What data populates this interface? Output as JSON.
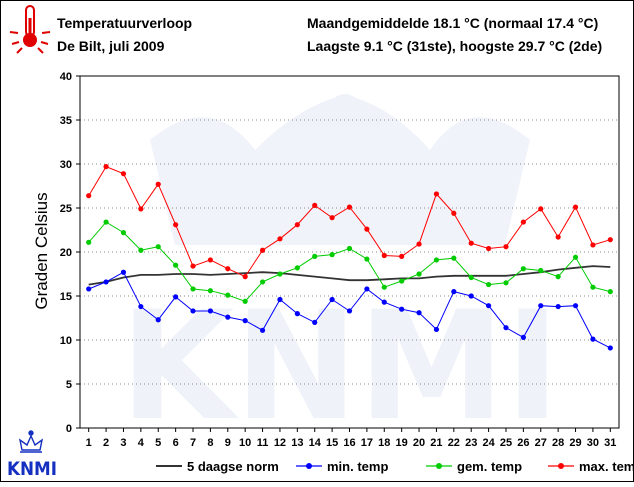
{
  "header": {
    "title_left": "Temperatuurverloop",
    "subtitle_left": "De Bilt, juli 2009",
    "title_right": "Maandgemiddelde 18.1 °C (normaal 17.4 °C)",
    "subtitle_right": "Laagste 9.1 °C (31ste), hoogste 29.7 °C (2de)"
  },
  "logo": {
    "text": "KNMI",
    "watermark": "KNMI"
  },
  "icons": {
    "thermometer": "thermometer-icon",
    "crown": "crown-icon"
  },
  "chart_data": {
    "type": "line",
    "title": "",
    "xlabel": "",
    "ylabel": "Graden Celsius",
    "ylim": [
      0,
      40
    ],
    "yticks": [
      0,
      5,
      10,
      15,
      20,
      25,
      30,
      35,
      40
    ],
    "x": [
      1,
      2,
      3,
      4,
      5,
      6,
      7,
      8,
      9,
      10,
      11,
      12,
      13,
      14,
      15,
      16,
      17,
      18,
      19,
      20,
      21,
      22,
      23,
      24,
      25,
      26,
      27,
      28,
      29,
      30,
      31
    ],
    "grid": "horizontal-dotted",
    "legend": "bottom",
    "series": [
      {
        "name": "5 daagse norm",
        "color": "#333333",
        "marker": false,
        "values": [
          16.3,
          16.6,
          17.1,
          17.4,
          17.4,
          17.5,
          17.5,
          17.4,
          17.5,
          17.6,
          17.7,
          17.6,
          17.4,
          17.2,
          17.0,
          16.8,
          16.8,
          16.9,
          17.0,
          17.0,
          17.2,
          17.3,
          17.3,
          17.3,
          17.3,
          17.5,
          17.7,
          18.0,
          18.2,
          18.4,
          18.3
        ]
      },
      {
        "name": "min. temp",
        "color": "#0000ff",
        "marker": true,
        "values": [
          15.8,
          16.6,
          17.7,
          13.8,
          12.3,
          14.9,
          13.3,
          13.3,
          12.6,
          12.2,
          11.1,
          14.6,
          13.0,
          12.0,
          14.6,
          13.3,
          15.8,
          14.3,
          13.5,
          13.1,
          11.2,
          15.5,
          15.0,
          13.9,
          11.4,
          10.3,
          13.9,
          13.8,
          13.9,
          10.1,
          9.1
        ]
      },
      {
        "name": "gem. temp",
        "color": "#00cc00",
        "marker": true,
        "values": [
          21.1,
          23.4,
          22.2,
          20.2,
          20.6,
          18.5,
          15.8,
          15.6,
          15.1,
          14.4,
          16.6,
          17.5,
          18.2,
          19.5,
          19.7,
          20.4,
          19.2,
          16.0,
          16.7,
          17.5,
          19.1,
          19.3,
          17.1,
          16.3,
          16.5,
          18.1,
          17.9,
          17.2,
          19.4,
          16.0,
          15.5
        ]
      },
      {
        "name": "max. temp",
        "color": "#ff0000",
        "marker": true,
        "values": [
          26.4,
          29.7,
          28.9,
          24.9,
          27.7,
          23.1,
          18.4,
          19.1,
          18.1,
          17.2,
          20.2,
          21.5,
          23.1,
          25.3,
          23.9,
          25.1,
          22.6,
          19.6,
          19.5,
          20.9,
          26.6,
          24.4,
          21.0,
          20.4,
          20.6,
          23.4,
          24.9,
          21.7,
          25.1,
          20.8,
          21.4
        ]
      }
    ]
  }
}
